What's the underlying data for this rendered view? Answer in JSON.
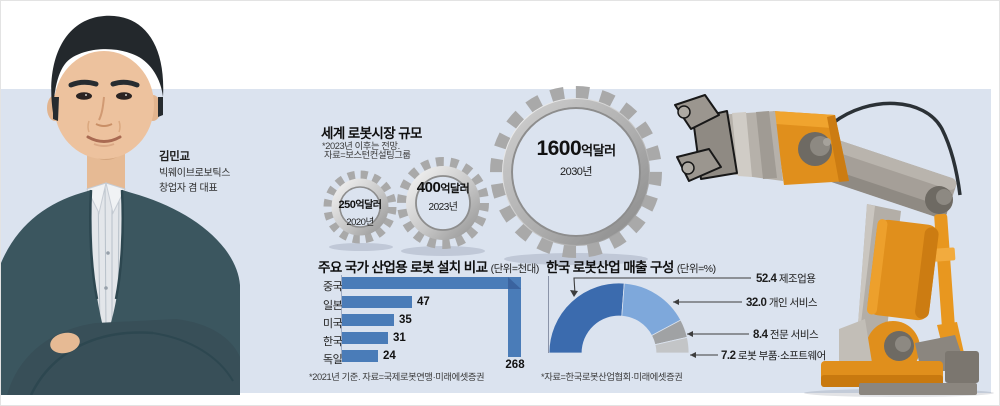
{
  "page": {
    "background": "#ffffff",
    "panel_color": "#dbe3ef"
  },
  "profile": {
    "name": "김민교",
    "organization": "빅웨이브로보틱스",
    "role": "창업자 겸 대표"
  },
  "chart_data": [
    {
      "type": "pictogram",
      "marker": "gear",
      "title": "세계 로봇시장 규모",
      "notes": [
        "*2023년 이후는 전망.",
        "자료=보스턴컨설팅그룹"
      ],
      "suffix": "억달러",
      "x": [
        "2020년",
        "2023년",
        "2030년"
      ],
      "values": [
        250,
        400,
        1600
      ],
      "values_display": [
        "250",
        "400",
        "1600"
      ]
    },
    {
      "type": "bar",
      "title": "주요 국가 산업용 로봇 설치 비교",
      "unit_label": "(단위=천대)",
      "categories": [
        "중국",
        "일본",
        "미국",
        "한국",
        "독일"
      ],
      "values": [
        268,
        47,
        35,
        31,
        24
      ],
      "bar_color": "#4a7cb8",
      "footnote": "*2021년 기준. 자료=국제로봇연맹·미래에셋증권"
    },
    {
      "type": "pie",
      "shape": "half-donut",
      "title": "한국 로봇산업 매출 구성",
      "unit_label": "(단위=%)",
      "labels": [
        "제조업용",
        "개인 서비스",
        "전문 서비스",
        "로봇 부품·소프트웨어"
      ],
      "values": [
        52.4,
        32.0,
        8.4,
        7.2
      ],
      "values_display": [
        "52.4",
        "32.0",
        "8.4",
        "7.2"
      ],
      "colors": [
        "#3b6bae",
        "#7ea8db",
        "#a0a2a4",
        "#c3c5c7"
      ],
      "footnote": "*자료=한국로봇산업협회·미래에셋증권"
    }
  ]
}
